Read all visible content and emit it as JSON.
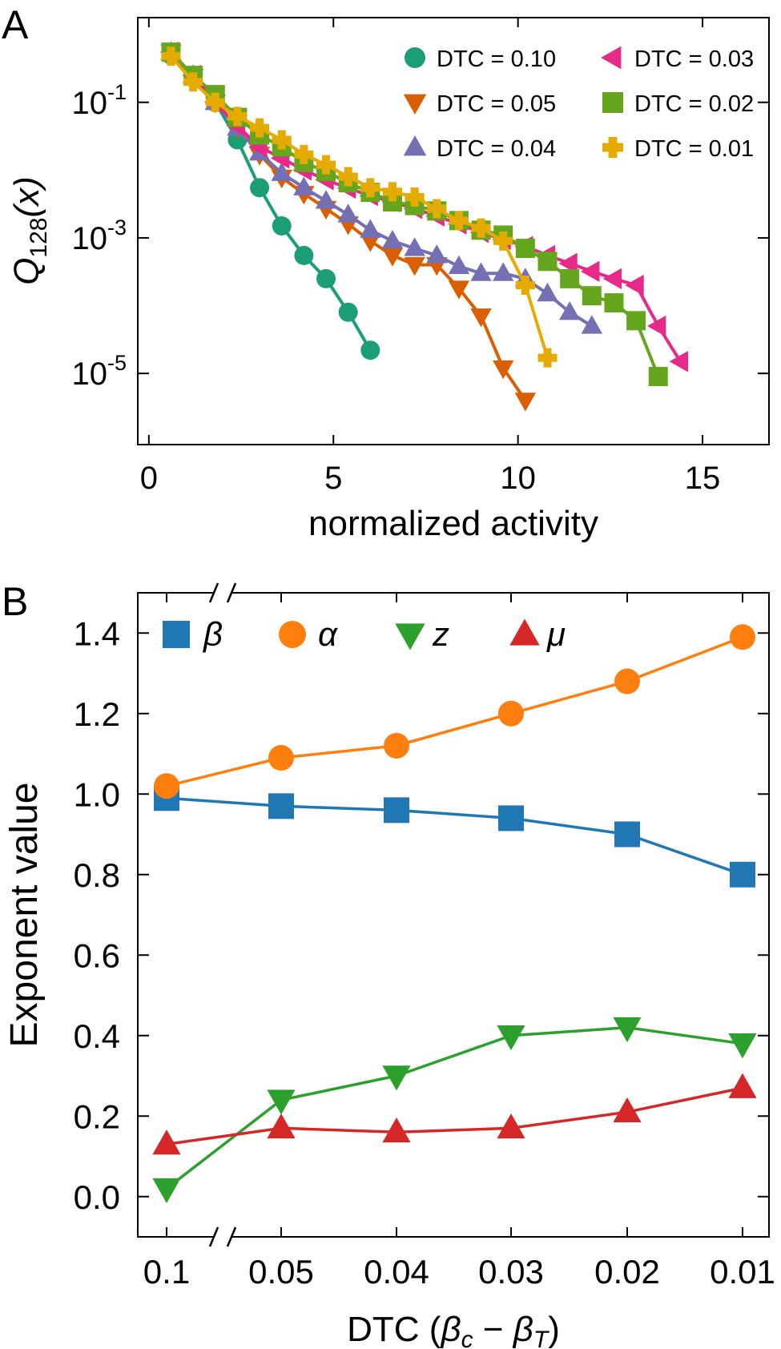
{
  "panels": [
    {
      "letter": "A"
    },
    {
      "letter": "B"
    }
  ],
  "chart_data": [
    {
      "type": "line",
      "panel": "A",
      "title": "",
      "xlabel": "normalized activity",
      "ylabel": "Q128(x)",
      "ylabel_main": "Q",
      "ylabel_sub": "128",
      "ylabel_arg": "(x)",
      "x_ticks": [
        "0",
        "5",
        "10",
        "15"
      ],
      "y_ticks": [
        {
          "base": "10",
          "exp": "-1"
        },
        {
          "base": "10",
          "exp": "-3"
        },
        {
          "base": "10",
          "exp": "-5"
        }
      ],
      "xlim": [
        -0.3,
        16.8
      ],
      "ylim_log10": [
        -6.05,
        0.25
      ],
      "y_scale": "log",
      "grid": false,
      "legend_position": "top-right",
      "series": [
        {
          "name": "DTC = 0.10",
          "color": "#1b9e77",
          "marker": "circle",
          "x": [
            0.6,
            1.2,
            1.8,
            2.4,
            3.0,
            3.6,
            4.2,
            4.8,
            5.4,
            6.0
          ],
          "y": [
            0.5,
            0.25,
            0.1,
            0.028,
            0.0055,
            0.0015,
            0.00055,
            0.00025,
            8e-05,
            2.2e-05
          ]
        },
        {
          "name": "DTC = 0.05",
          "color": "#d95f02",
          "marker": "triangle-down",
          "x": [
            0.6,
            1.2,
            1.8,
            2.4,
            3.0,
            3.6,
            4.2,
            4.8,
            5.4,
            6.0,
            6.6,
            7.2,
            7.8,
            8.4,
            9.0,
            9.6,
            10.2
          ],
          "y": [
            0.55,
            0.24,
            0.1,
            0.042,
            0.017,
            0.0078,
            0.0045,
            0.0027,
            0.0016,
            0.0009,
            0.00055,
            0.0004,
            0.0004,
            0.00018,
            7e-05,
            1.2e-05,
            4e-06
          ]
        },
        {
          "name": "DTC = 0.04",
          "color": "#7570b3",
          "marker": "triangle-up",
          "x": [
            0.6,
            1.2,
            1.8,
            2.4,
            3.0,
            3.6,
            4.2,
            4.8,
            5.4,
            6.0,
            6.6,
            7.2,
            7.8,
            8.4,
            9.0,
            9.6,
            10.2,
            10.8,
            11.4,
            12.0
          ],
          "y": [
            0.55,
            0.25,
            0.1,
            0.042,
            0.018,
            0.009,
            0.0055,
            0.0035,
            0.0022,
            0.0013,
            0.0009,
            0.0007,
            0.00055,
            0.00038,
            0.0003,
            0.0003,
            0.00025,
            0.00015,
            8e-05,
            5e-05
          ]
        },
        {
          "name": "DTC = 0.03",
          "color": "#e7298a",
          "marker": "triangle-left",
          "x": [
            0.6,
            1.2,
            1.8,
            2.4,
            3.0,
            3.6,
            4.2,
            4.8,
            5.4,
            6.0,
            6.6,
            7.2,
            7.8,
            8.4,
            9.0,
            9.6,
            10.2,
            10.8,
            11.4,
            12.0,
            12.6,
            13.2,
            13.8,
            14.4
          ],
          "y": [
            0.55,
            0.25,
            0.1,
            0.045,
            0.022,
            0.015,
            0.01,
            0.0072,
            0.0054,
            0.0042,
            0.0034,
            0.0027,
            0.0021,
            0.0016,
            0.0012,
            0.00095,
            0.00075,
            0.00055,
            0.00042,
            0.00032,
            0.00025,
            0.0002,
            5e-05,
            1.5e-05
          ]
        },
        {
          "name": "DTC = 0.02",
          "color": "#66a61e",
          "marker": "square",
          "x": [
            0.6,
            1.2,
            1.8,
            2.4,
            3.0,
            3.6,
            4.2,
            4.8,
            5.4,
            6.0,
            6.6,
            7.2,
            7.8,
            8.4,
            9.0,
            9.6,
            10.2,
            10.8,
            11.4,
            12.0,
            12.6,
            13.2,
            13.8
          ],
          "y": [
            0.55,
            0.25,
            0.13,
            0.06,
            0.033,
            0.022,
            0.013,
            0.0095,
            0.0065,
            0.0047,
            0.0034,
            0.003,
            0.0025,
            0.0018,
            0.0013,
            0.0011,
            0.0007,
            0.00045,
            0.00025,
            0.00014,
            0.00011,
            6e-05,
            9e-06
          ]
        },
        {
          "name": "DTC = 0.01",
          "color": "#e6ab02",
          "marker": "plus",
          "x": [
            0.6,
            1.2,
            1.8,
            2.4,
            3.0,
            3.6,
            4.2,
            4.8,
            5.4,
            6.0,
            6.6,
            7.2,
            7.8,
            8.4,
            9.0,
            9.6,
            10.2,
            10.8
          ],
          "y": [
            0.48,
            0.2,
            0.1,
            0.062,
            0.042,
            0.028,
            0.017,
            0.012,
            0.008,
            0.0055,
            0.0048,
            0.004,
            0.0027,
            0.0018,
            0.0014,
            0.0009,
            0.0002,
            1.7e-05
          ]
        }
      ]
    },
    {
      "type": "line",
      "panel": "B",
      "title": "",
      "xlabel": "DTC (βc − βT)",
      "xlabel_prefix": "DTC (",
      "xlabel_b1": "β",
      "xlabel_s1": "c",
      "xlabel_minus": " − ",
      "xlabel_b2": "β",
      "xlabel_s2": "T",
      "xlabel_suffix": ")",
      "ylabel": "Exponent value",
      "categories": [
        "0.1",
        "0.05",
        "0.04",
        "0.03",
        "0.02",
        "0.01"
      ],
      "y_ticks": [
        "0.0",
        "0.2",
        "0.4",
        "0.6",
        "0.8",
        "1.0",
        "1.2",
        "1.4"
      ],
      "ylim": [
        -0.1,
        1.5
      ],
      "axis_break": "between 0.1 and 0.05",
      "grid": false,
      "legend_position": "top",
      "series": [
        {
          "name": "β",
          "color": "#1f77b4",
          "marker": "square",
          "values": [
            0.99,
            0.97,
            0.96,
            0.94,
            0.9,
            0.8
          ]
        },
        {
          "name": "α",
          "color": "#ff7f0e",
          "marker": "circle",
          "values": [
            1.02,
            1.09,
            1.12,
            1.2,
            1.28,
            1.39
          ]
        },
        {
          "name": "z",
          "color": "#2ca02c",
          "marker": "triangle-down",
          "values": [
            0.02,
            0.24,
            0.3,
            0.4,
            0.42,
            0.38
          ]
        },
        {
          "name": "μ",
          "color": "#d62728",
          "marker": "triangle-up",
          "values": [
            0.13,
            0.17,
            0.16,
            0.17,
            0.21,
            0.27
          ]
        }
      ]
    }
  ]
}
